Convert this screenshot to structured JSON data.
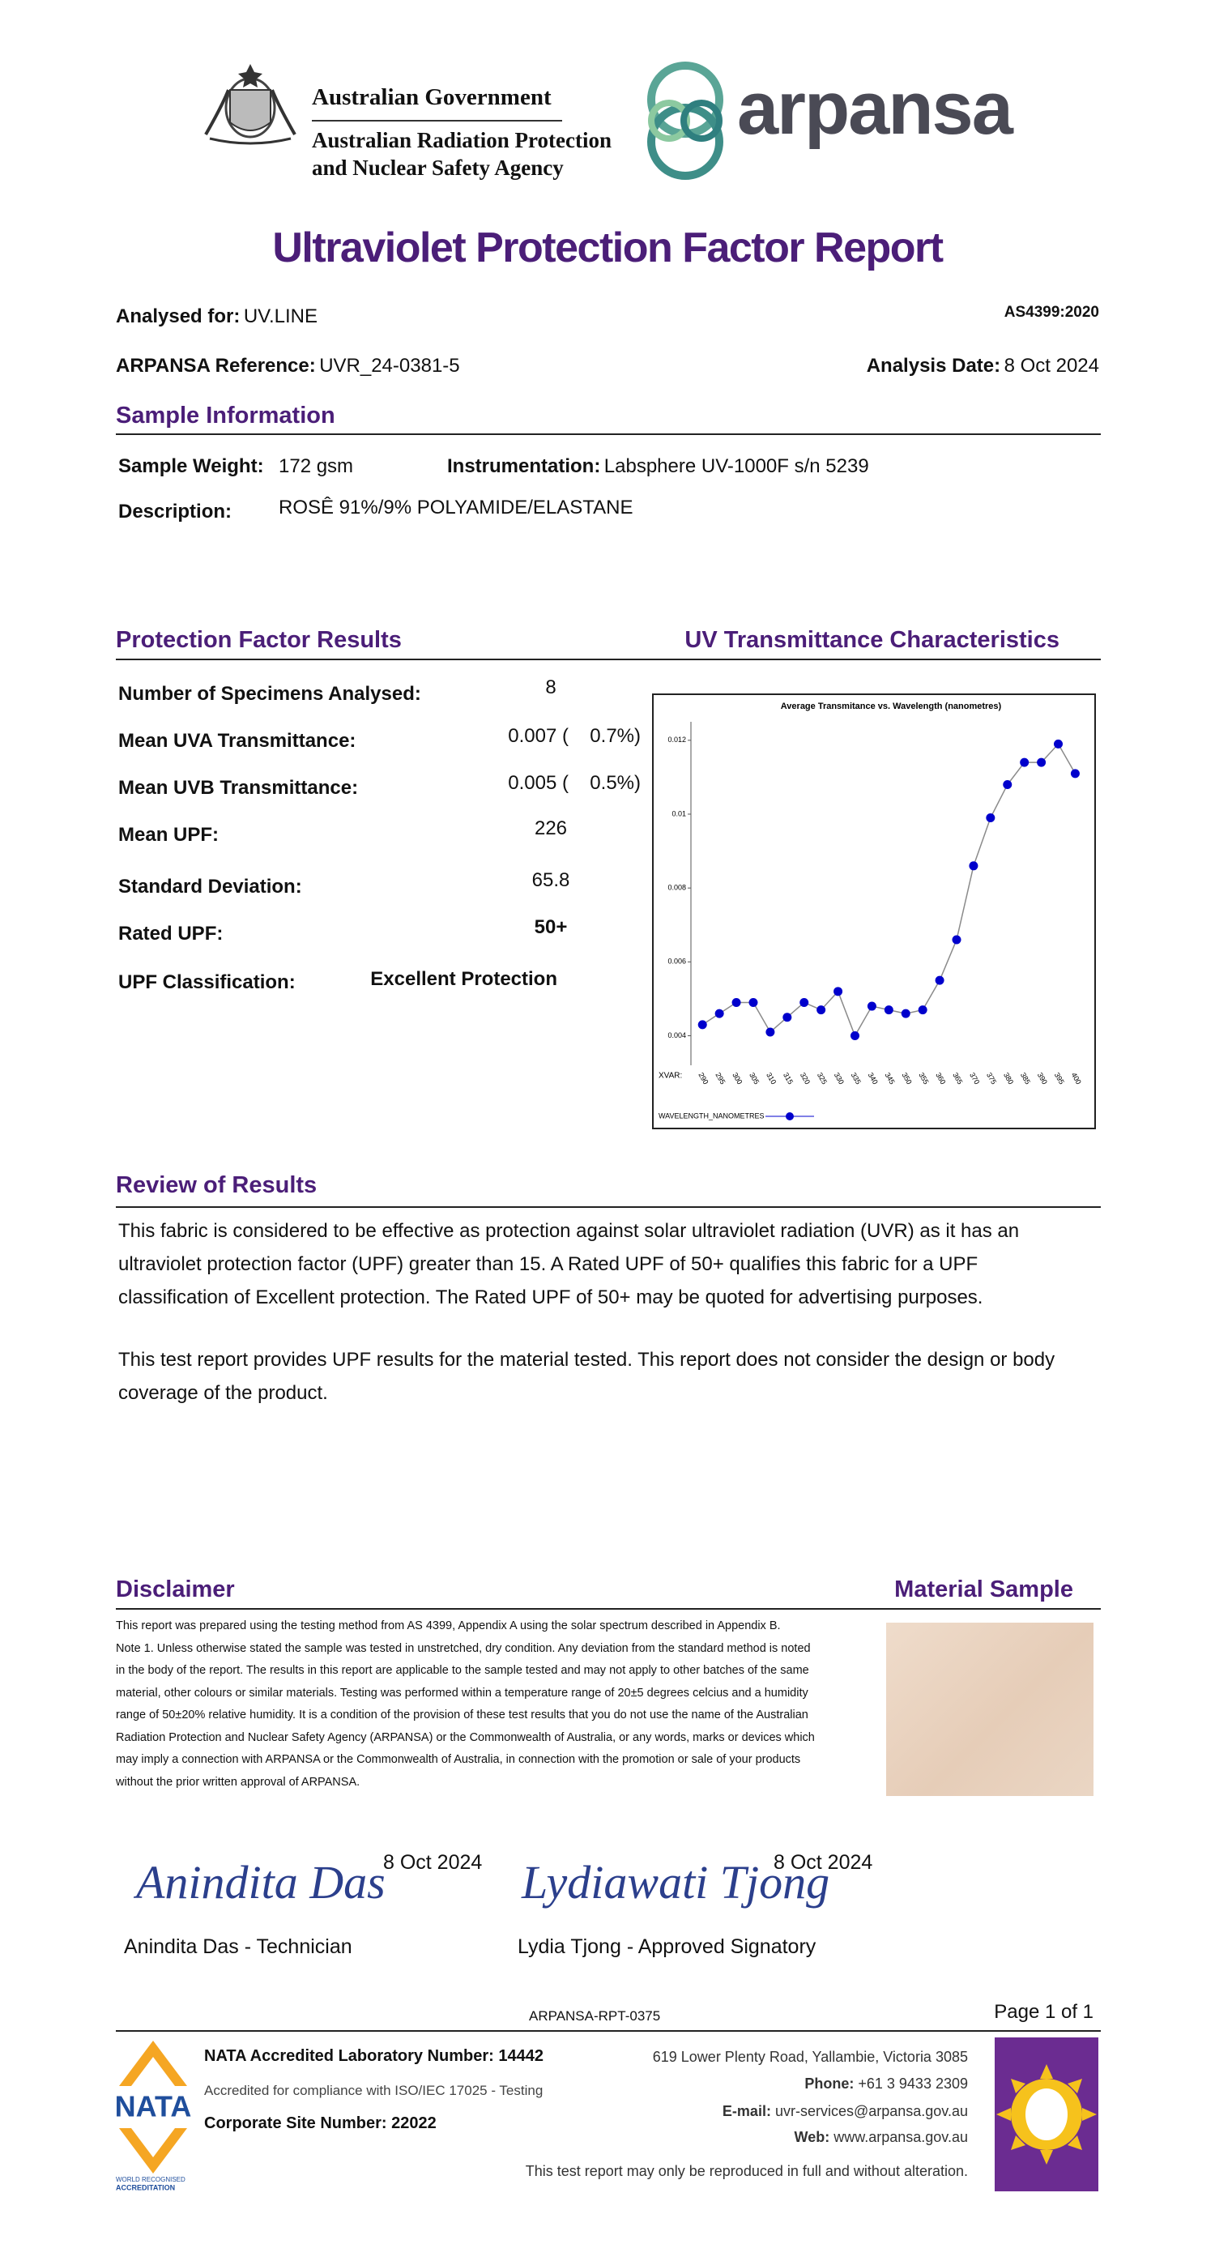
{
  "header": {
    "gov_line1": "Australian Government",
    "gov_line2": "Australian Radiation Protection",
    "gov_line3": "and Nuclear Safety Agency",
    "brand": "arpansa"
  },
  "title": "Ultraviolet Protection Factor Report",
  "standard": "AS4399:2020",
  "analysed_for": {
    "label": "Analysed for:",
    "value": "UV.LINE"
  },
  "reference": {
    "label": "ARPANSA Reference:",
    "value": "UVR_24-0381-5"
  },
  "analysis_date": {
    "label": "Analysis Date:",
    "value": "8 Oct 2024"
  },
  "sample_information": {
    "heading": "Sample Information",
    "weight_label": "Sample Weight:",
    "weight": "172 gsm",
    "instrumentation_label": "Instrumentation:",
    "instrumentation": "Labsphere UV-1000F s/n 5239",
    "description_label": "Description:",
    "description": "ROSÊ 91%/9% POLYAMIDE/ELASTANE"
  },
  "results": {
    "heading": "Protection Factor Results",
    "chart_heading": "UV Transmittance Characteristics",
    "rows": [
      [
        "Number of Specimens Analysed:",
        "8"
      ],
      [
        "Mean UVA Transmittance:",
        "0.007 (",
        "0.7%)"
      ],
      [
        "Mean UVB Transmittance:",
        "0.005 (",
        "0.5%)"
      ],
      [
        "Mean UPF:",
        "226"
      ],
      [
        "Standard Deviation:",
        "65.8"
      ],
      [
        "Rated UPF:",
        "50+"
      ],
      [
        "UPF Classification:",
        "Excellent Protection"
      ]
    ]
  },
  "chart_data": {
    "type": "line",
    "title": "Average Transmitance vs. Wavelength (nanometres)",
    "x_label": "XVAR:",
    "x": [
      290,
      295,
      300,
      305,
      310,
      315,
      320,
      325,
      330,
      335,
      340,
      345,
      350,
      355,
      360,
      365,
      370,
      375,
      380,
      385,
      390,
      395,
      400
    ],
    "xlim": [
      286.6,
      404.2
    ],
    "xticks": [
      290,
      295,
      300,
      305,
      310,
      315,
      320,
      325,
      330,
      335,
      340,
      345,
      350,
      355,
      360,
      365,
      370,
      375,
      380,
      385,
      390,
      395,
      400
    ],
    "ylim": [
      0.0032,
      0.0125
    ],
    "yticks": [
      0.004,
      0.006,
      0.008,
      0.01,
      0.012
    ],
    "grid": false,
    "series": [
      {
        "name": "WAVELENGTH_NANOMETRES",
        "color": "#0000cc",
        "line_color": "#8a8a8a",
        "values": [
          0.0043,
          0.0046,
          0.0049,
          0.0049,
          0.0041,
          0.0045,
          0.0049,
          0.0047,
          0.0052,
          0.004,
          0.0048,
          0.0047,
          0.0046,
          0.0047,
          0.0055,
          0.0066,
          0.0086,
          0.0099,
          0.0108,
          0.0114,
          0.0114,
          0.0119,
          0.0111
        ]
      }
    ]
  },
  "review": {
    "heading": "Review of Results",
    "paragraph1": [
      "This fabric is considered to be effective as protection against solar ultraviolet radiation  (UVR) as it has an",
      "ultraviolet protection factor (UPF) greater than 15.  A Rated UPF of 50+ qualifies this fabric for a UPF",
      "classification of Excellent protection. The Rated UPF of 50+ may be quoted for advertising purposes."
    ],
    "paragraph2": [
      "This test report provides UPF results for the material tested. This report does not consider the design or body",
      "coverage of the product."
    ]
  },
  "disclaimer": {
    "heading": "Disclaimer",
    "sample_heading": "Material Sample",
    "lines": [
      "This report was prepared using the testing method from AS 4399, Appendix A using the solar spectrum described in Appendix B.",
      "Note 1. Unless otherwise stated the sample was tested in unstretched, dry condition. Any deviation from the standard method is noted",
      "in the body of the report. The results in this report are applicable to the sample tested and may not apply to other batches of the same",
      "material, other colours or similar materials. Testing was performed within a temperature range of 20±5 degrees celcius and a humidity",
      "range of 50±20% relative humidity. It is a condition of the provision of these test results that you do not use the name of the Australian",
      "Radiation Protection and Nuclear Safety Agency (ARPANSA) or the Commonwealth of Australia, or any words, marks or devices which",
      "may imply a connection with ARPANSA or the Commonwealth of Australia, in connection with the promotion or sale of your products",
      "without the prior written approval of ARPANSA."
    ]
  },
  "signatures": [
    {
      "signature": "Anindita Das",
      "date": "8 Oct 2024",
      "name": "Anindita Das - Technician"
    },
    {
      "signature": "Lydiawati Tjong",
      "date": "8 Oct 2024",
      "name": "Lydia Tjong - Approved Signatory"
    }
  ],
  "footer": {
    "report_code": "ARPANSA-RPT-0375",
    "page": "Page 1 of 1",
    "nata_logo": "NATA",
    "nata_logo_sub1": "WORLD RECOGNISED",
    "nata_logo_sub2": "ACCREDITATION",
    "nata_number": "NATA Accredited Laboratory Number: 14442",
    "nata_compliance": "Accredited for compliance with ISO/IEC 17025 - Testing",
    "corporate_site": "Corporate Site Number: 22022",
    "address": "619 Lower Plenty Road, Yallambie, Victoria 3085",
    "phone_label": "Phone:",
    "phone": "+61 3 9433 2309",
    "email_label": "E-mail:",
    "email": "uvr-services@arpansa.gov.au",
    "web_label": "Web:",
    "web": "www.arpansa.gov.au",
    "note": "This test report may only be reproduced in full and without alteration."
  }
}
